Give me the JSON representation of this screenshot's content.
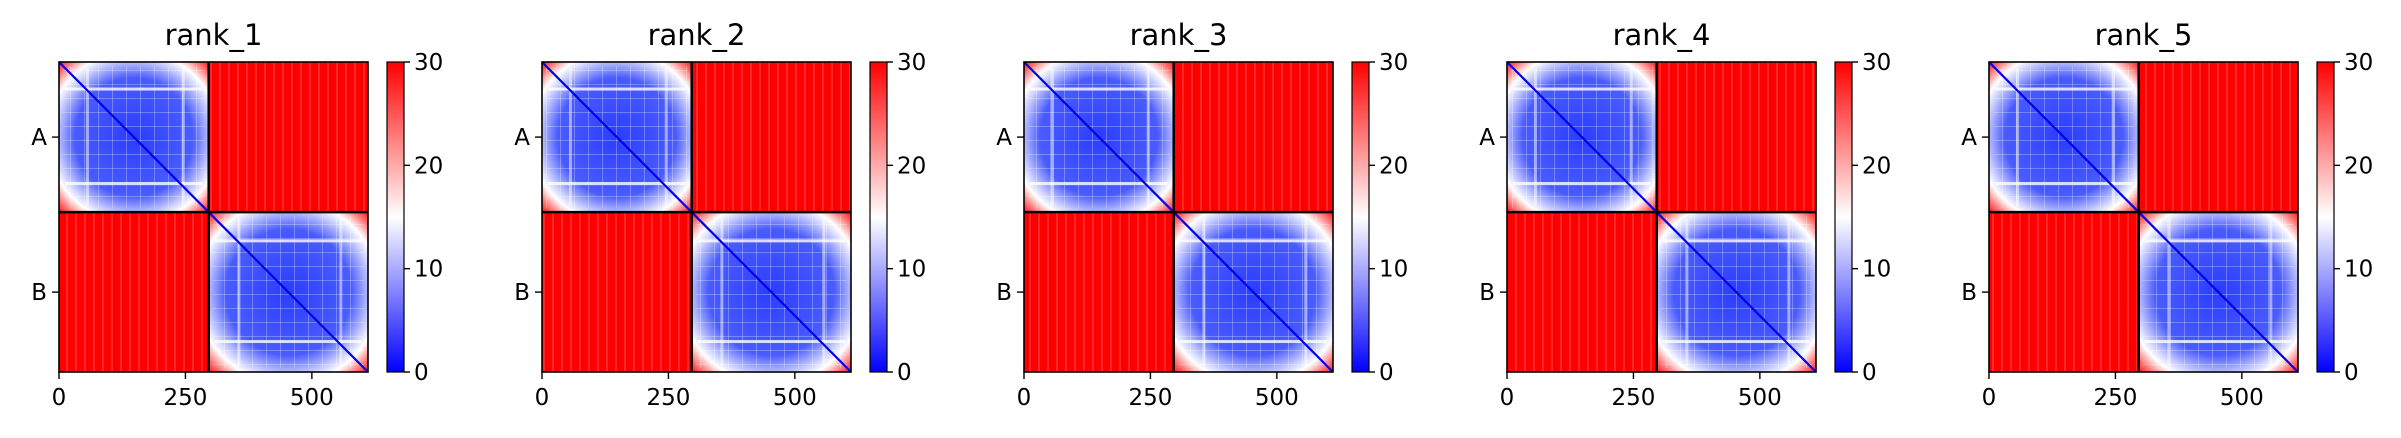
{
  "chart_data": [
    {
      "type": "heatmap",
      "title": "rank_1",
      "xticks": [
        0,
        250,
        500
      ],
      "yticks": [
        "A",
        "B"
      ],
      "xlim": [
        0,
        611
      ],
      "ylim": [
        0,
        611
      ],
      "chains": [
        {
          "name": "A",
          "start": 0,
          "end": 296
        },
        {
          "name": "B",
          "start": 296,
          "end": 611
        }
      ],
      "colorbar": {
        "min": 0,
        "max": 30,
        "ticks": [
          0,
          10,
          20,
          30
        ],
        "colors": [
          "#0000ff",
          "#ffffff",
          "#ff0000"
        ]
      },
      "cmap": "bwr"
    },
    {
      "type": "heatmap",
      "title": "rank_2",
      "xticks": [
        0,
        250,
        500
      ],
      "yticks": [
        "A",
        "B"
      ],
      "xlim": [
        0,
        611
      ],
      "ylim": [
        0,
        611
      ],
      "chains": [
        {
          "name": "A",
          "start": 0,
          "end": 296
        },
        {
          "name": "B",
          "start": 296,
          "end": 611
        }
      ],
      "colorbar": {
        "min": 0,
        "max": 30,
        "ticks": [
          0,
          10,
          20,
          30
        ],
        "colors": [
          "#0000ff",
          "#ffffff",
          "#ff0000"
        ]
      },
      "cmap": "bwr"
    },
    {
      "type": "heatmap",
      "title": "rank_3",
      "xticks": [
        0,
        250,
        500
      ],
      "yticks": [
        "A",
        "B"
      ],
      "xlim": [
        0,
        611
      ],
      "ylim": [
        0,
        611
      ],
      "chains": [
        {
          "name": "A",
          "start": 0,
          "end": 296
        },
        {
          "name": "B",
          "start": 296,
          "end": 611
        }
      ],
      "colorbar": {
        "min": 0,
        "max": 30,
        "ticks": [
          0,
          10,
          20,
          30
        ],
        "colors": [
          "#0000ff",
          "#ffffff",
          "#ff0000"
        ]
      },
      "cmap": "bwr"
    },
    {
      "type": "heatmap",
      "title": "rank_4",
      "xticks": [
        0,
        250,
        500
      ],
      "yticks": [
        "A",
        "B"
      ],
      "xlim": [
        0,
        611
      ],
      "ylim": [
        0,
        611
      ],
      "chains": [
        {
          "name": "A",
          "start": 0,
          "end": 296
        },
        {
          "name": "B",
          "start": 296,
          "end": 611
        }
      ],
      "colorbar": {
        "min": 0,
        "max": 30,
        "ticks": [
          0,
          10,
          20,
          30
        ],
        "colors": [
          "#0000ff",
          "#ffffff",
          "#ff0000"
        ]
      },
      "cmap": "bwr"
    },
    {
      "type": "heatmap",
      "title": "rank_5",
      "xticks": [
        0,
        250,
        500
      ],
      "yticks": [
        "A",
        "B"
      ],
      "xlim": [
        0,
        611
      ],
      "ylim": [
        0,
        611
      ],
      "chains": [
        {
          "name": "A",
          "start": 0,
          "end": 296
        },
        {
          "name": "B",
          "start": 296,
          "end": 611
        }
      ],
      "colorbar": {
        "min": 0,
        "max": 30,
        "ticks": [
          0,
          10,
          20,
          30
        ],
        "colors": [
          "#0000ff",
          "#ffffff",
          "#ff0000"
        ]
      },
      "cmap": "bwr"
    }
  ]
}
